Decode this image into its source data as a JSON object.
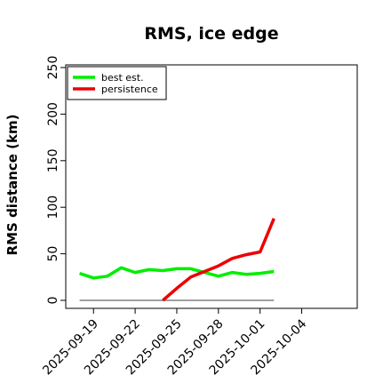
{
  "chart_data": {
    "type": "line",
    "title": "RMS, ice edge",
    "xlabel": "",
    "ylabel": "RMS distance (km)",
    "ylim": [
      0,
      250
    ],
    "xlim": [
      "2025-09-17",
      "2025-10-08"
    ],
    "yticks": [
      "0",
      "50",
      "100",
      "150",
      "200",
      "250"
    ],
    "xticks": [
      "2025-09-19",
      "2025-09-22",
      "2025-09-25",
      "2025-09-28",
      "2025-10-01",
      "2025-10-04"
    ],
    "grid": false,
    "legend_position": "top-left",
    "baseline": {
      "value": 0,
      "x_range": [
        "2025-09-18",
        "2025-10-02"
      ],
      "color": "#808080"
    },
    "series": [
      {
        "name": "best est.",
        "color": "#00ee00",
        "points": [
          [
            "2025-09-18",
            29
          ],
          [
            "2025-09-19",
            24
          ],
          [
            "2025-09-20",
            26
          ],
          [
            "2025-09-21",
            35
          ],
          [
            "2025-09-22",
            30
          ],
          [
            "2025-09-23",
            33
          ],
          [
            "2025-09-24",
            32
          ],
          [
            "2025-09-25",
            34
          ],
          [
            "2025-09-26",
            34
          ],
          [
            "2025-09-27",
            30
          ],
          [
            "2025-09-28",
            26
          ],
          [
            "2025-09-29",
            30
          ],
          [
            "2025-09-30",
            28
          ],
          [
            "2025-10-01",
            29
          ],
          [
            "2025-10-02",
            31
          ]
        ]
      },
      {
        "name": "persistence",
        "color": "#ee0000",
        "points": [
          [
            "2025-09-24",
            0
          ],
          [
            "2025-09-25",
            13
          ],
          [
            "2025-09-26",
            25
          ],
          [
            "2025-09-27",
            31
          ],
          [
            "2025-09-28",
            37
          ],
          [
            "2025-09-29",
            45
          ],
          [
            "2025-09-30",
            49
          ],
          [
            "2025-10-01",
            52
          ],
          [
            "2025-10-02",
            88
          ]
        ]
      }
    ]
  }
}
